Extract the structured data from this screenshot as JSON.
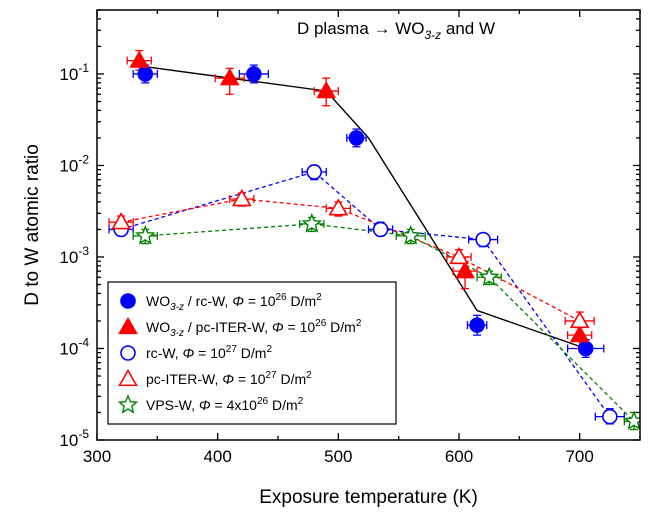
{
  "chart_data": {
    "type": "scatter",
    "title": {
      "pre": "D plasma → WO",
      "sub": "3-z",
      "post": " and W"
    },
    "xlabel": "Exposure temperature (K)",
    "ylabel": "D to W atomic ratio",
    "xlim": [
      300,
      750
    ],
    "ylim": [
      1e-05,
      0.5
    ],
    "yscale": "log",
    "x_ticks": [
      300,
      400,
      500,
      600,
      700
    ],
    "x_tick_labels": [
      "300",
      "400",
      "500",
      "600",
      "700"
    ],
    "y_ticks": [
      {
        "value": 1e-05,
        "base": "10",
        "exp": "-5"
      },
      {
        "value": 0.0001,
        "base": "10",
        "exp": "-4"
      },
      {
        "value": 0.001,
        "base": "10",
        "exp": "-3"
      },
      {
        "value": 0.01,
        "base": "10",
        "exp": "-2"
      },
      {
        "value": 0.1,
        "base": "10",
        "exp": "-1"
      }
    ],
    "grid": false,
    "legend_position": "bottom-left",
    "series": [
      {
        "color": "#0000FF",
        "marker": "circle",
        "filled": true,
        "label": [
          {
            "t": "WO"
          },
          {
            "t": "3-z",
            "sub": true
          },
          {
            "t": " / rc-W, "
          },
          {
            "t": "Φ",
            "it": true
          },
          {
            "t": " = 10"
          },
          {
            "t": "26",
            "sup": true
          },
          {
            "t": " D/m"
          },
          {
            "t": "2",
            "sup": true
          }
        ],
        "points": [
          {
            "x": 340,
            "y": 0.1,
            "xerr": 10,
            "ylo": 0.08,
            "yhi": 0.125
          },
          {
            "x": 430,
            "y": 0.1,
            "xerr": 12,
            "ylo": 0.08,
            "yhi": 0.125
          },
          {
            "x": 515,
            "y": 0.02,
            "xerr": 8,
            "ylo": 0.016,
            "yhi": 0.025
          },
          {
            "x": 615,
            "y": 0.00018,
            "xerr": 8,
            "ylo": 0.00014,
            "yhi": 0.00023
          },
          {
            "x": 705,
            "y": 0.0001,
            "xerr": 15,
            "ylo": 8e-05,
            "yhi": 0.000125
          }
        ]
      },
      {
        "color": "#FF0000",
        "marker": "triangle",
        "filled": true,
        "label": [
          {
            "t": "WO"
          },
          {
            "t": "3-z",
            "sub": true
          },
          {
            "t": " / pc-ITER-W, "
          },
          {
            "t": "Φ",
            "it": true
          },
          {
            "t": " = 10"
          },
          {
            "t": "26",
            "sup": true
          },
          {
            "t": " D/m"
          },
          {
            "t": "2",
            "sup": true
          }
        ],
        "points": [
          {
            "x": 335,
            "y": 0.14,
            "xerr": 10,
            "ylo": 0.11,
            "yhi": 0.18
          },
          {
            "x": 410,
            "y": 0.09,
            "xerr": 12,
            "ylo": 0.06,
            "yhi": 0.115
          },
          {
            "x": 490,
            "y": 0.065,
            "xerr": 10,
            "ylo": 0.045,
            "yhi": 0.09
          },
          {
            "x": 605,
            "y": 0.0007,
            "xerr": 10,
            "ylo": 0.00045,
            "yhi": 0.001
          },
          {
            "x": 700,
            "y": 0.00014,
            "xerr": 10,
            "ylo": 0.0001,
            "yhi": 0.0002
          }
        ]
      },
      {
        "color": "#0000FF",
        "marker": "circle",
        "filled": false,
        "label": [
          {
            "t": "rc-W, "
          },
          {
            "t": "Φ",
            "it": true
          },
          {
            "t": " = 10"
          },
          {
            "t": "27",
            "sup": true
          },
          {
            "t": " D/m"
          },
          {
            "t": "2",
            "sup": true
          }
        ],
        "points": [
          {
            "x": 320,
            "y": 0.002,
            "xerr": 10,
            "ylo": 0.0017,
            "yhi": 0.0024
          },
          {
            "x": 480,
            "y": 0.0085,
            "xerr": 10,
            "ylo": 0.007,
            "yhi": 0.01
          },
          {
            "x": 535,
            "y": 0.002,
            "xerr": 10,
            "ylo": 0.0017,
            "yhi": 0.0024
          },
          {
            "x": 620,
            "y": 0.00155,
            "xerr": 12,
            "ylo": 0.0013,
            "yhi": 0.0018
          },
          {
            "x": 725,
            "y": 1.8e-05,
            "xerr": 12,
            "ylo": 1.5e-05,
            "yhi": 2.2e-05
          }
        ]
      },
      {
        "color": "#FF0000",
        "marker": "triangle",
        "filled": false,
        "label": [
          {
            "t": "pc-ITER-W, "
          },
          {
            "t": "Φ",
            "it": true
          },
          {
            "t": " = 10"
          },
          {
            "t": "27",
            "sup": true
          },
          {
            "t": " D/m"
          },
          {
            "t": "2",
            "sup": true
          }
        ],
        "points": [
          {
            "x": 320,
            "y": 0.0024,
            "xerr": 10,
            "ylo": 0.002,
            "yhi": 0.0028
          },
          {
            "x": 420,
            "y": 0.0043,
            "xerr": 10,
            "ylo": 0.0036,
            "yhi": 0.005
          },
          {
            "x": 500,
            "y": 0.0034,
            "xerr": 10,
            "ylo": 0.0028,
            "yhi": 0.004
          },
          {
            "x": 600,
            "y": 0.001,
            "xerr": 10,
            "ylo": 0.00085,
            "yhi": 0.0012
          },
          {
            "x": 700,
            "y": 0.0002,
            "xerr": 12,
            "ylo": 0.00017,
            "yhi": 0.00025
          }
        ]
      },
      {
        "color": "#008000",
        "marker": "star",
        "filled": false,
        "label": [
          {
            "t": "VPS-W, "
          },
          {
            "t": "Φ",
            "it": true
          },
          {
            "t": " = 4x10"
          },
          {
            "t": "26",
            "sup": true
          },
          {
            "t": " D/m"
          },
          {
            "t": "2",
            "sup": true
          }
        ],
        "points": [
          {
            "x": 340,
            "y": 0.0017,
            "xerr": 10,
            "ylo": 0.0014,
            "yhi": 0.002
          },
          {
            "x": 478,
            "y": 0.0023,
            "xerr": 10,
            "ylo": 0.0019,
            "yhi": 0.0027
          },
          {
            "x": 560,
            "y": 0.0017,
            "xerr": 12,
            "ylo": 0.0014,
            "yhi": 0.002
          },
          {
            "x": 625,
            "y": 0.0006,
            "xerr": 10,
            "ylo": 0.0005,
            "yhi": 0.0007
          },
          {
            "x": 745,
            "y": 1.6e-05,
            "xerr": 8,
            "ylo": 1.3e-05,
            "yhi": 2e-05
          }
        ]
      }
    ],
    "trend_line": {
      "color": "#000000",
      "points": [
        [
          340,
          0.12
        ],
        [
          490,
          0.065
        ],
        [
          525,
          0.02
        ],
        [
          615,
          0.00026
        ],
        [
          705,
          0.0001
        ]
      ]
    }
  }
}
